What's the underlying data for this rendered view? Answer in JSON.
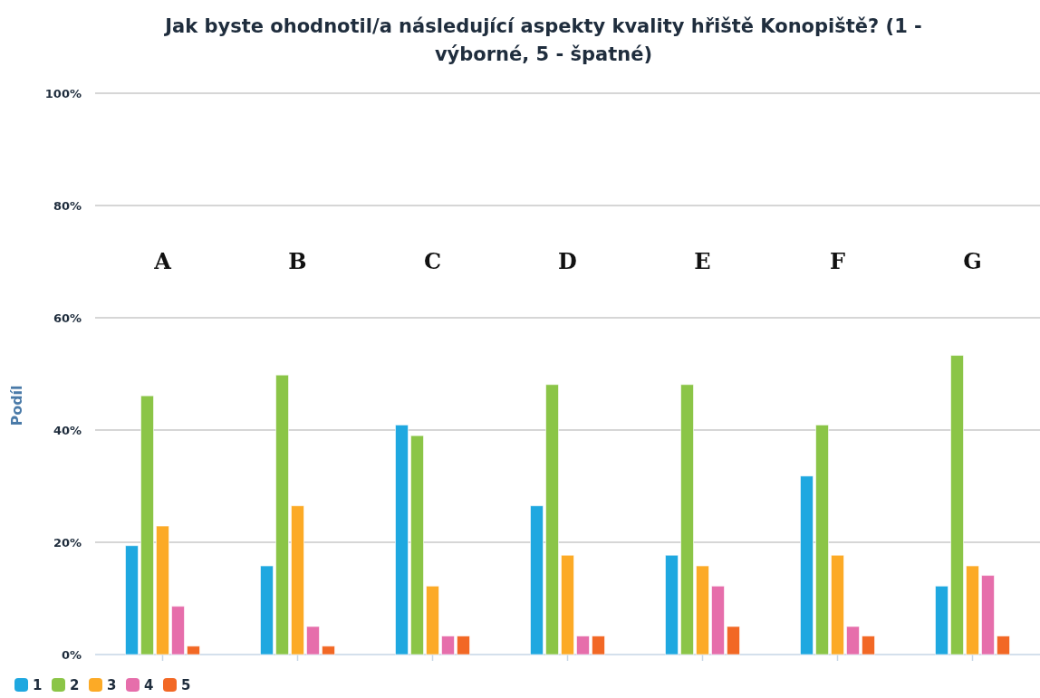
{
  "chart_data": {
    "type": "bar",
    "title": "Jak byste ohodnotil/a následující aspekty kvality hřiště Konopiště? (1 - výborné, 5 - špatné)",
    "ylabel": "Podíl",
    "categories": [
      "A",
      "B",
      "C",
      "D",
      "E",
      "F",
      "G"
    ],
    "series": [
      {
        "name": "1",
        "color": "#1fa8e0",
        "values": [
          19.4,
          15.8,
          40.9,
          26.5,
          17.7,
          31.8,
          12.2
        ]
      },
      {
        "name": "2",
        "color": "#8bc547",
        "values": [
          46.1,
          49.8,
          39.0,
          48.1,
          48.1,
          40.9,
          53.3
        ]
      },
      {
        "name": "3",
        "color": "#fcaa26",
        "values": [
          22.9,
          26.5,
          12.2,
          17.7,
          15.8,
          17.7,
          15.8
        ]
      },
      {
        "name": "4",
        "color": "#e66eab",
        "values": [
          8.6,
          5.0,
          3.3,
          3.3,
          12.2,
          5.0,
          14.1
        ]
      },
      {
        "name": "5",
        "color": "#f26825",
        "values": [
          1.5,
          1.5,
          3.3,
          3.3,
          5.0,
          3.3,
          3.3
        ]
      }
    ],
    "ylim": [
      0,
      100
    ],
    "yticks": [
      {
        "value": 0,
        "label": "0%"
      },
      {
        "value": 20,
        "label": "20%"
      },
      {
        "value": 40,
        "label": "40%"
      },
      {
        "value": 60,
        "label": "60%"
      },
      {
        "value": 80,
        "label": "80%"
      },
      {
        "value": 100,
        "label": "100%"
      }
    ],
    "grid": "y",
    "legend": "bottom left"
  }
}
